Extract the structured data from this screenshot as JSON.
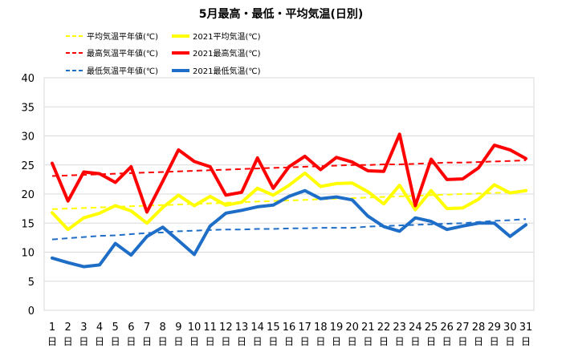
{
  "chart_data": {
    "type": "line",
    "title": "5月最高・最低・平均気温(日別)",
    "xlabel": "",
    "ylabel": "",
    "ylim": [
      0,
      40
    ],
    "yticks": [
      0,
      5,
      10,
      15,
      20,
      25,
      30,
      35,
      40
    ],
    "grid": true,
    "legend_position": "top-left",
    "day_suffix": "日",
    "categories": [
      "1",
      "2",
      "3",
      "4",
      "5",
      "6",
      "7",
      "8",
      "9",
      "10",
      "11",
      "12",
      "13",
      "14",
      "15",
      "16",
      "17",
      "18",
      "19",
      "20",
      "21",
      "22",
      "23",
      "24",
      "25",
      "26",
      "27",
      "28",
      "29",
      "30",
      "31"
    ],
    "series": [
      {
        "name": "平均気温平年値(℃)",
        "color": "#ffff00",
        "dashed": true,
        "values": [
          17.4,
          17.5,
          17.6,
          17.7,
          17.8,
          17.9,
          18.0,
          18.1,
          18.2,
          18.3,
          18.4,
          18.5,
          18.6,
          18.7,
          18.8,
          18.9,
          19.0,
          19.1,
          19.2,
          19.3,
          19.4,
          19.5,
          19.6,
          19.7,
          19.8,
          19.9,
          20.0,
          20.1,
          20.2,
          20.3,
          20.4
        ]
      },
      {
        "name": "2021平均気温(℃)",
        "color": "#ffff00",
        "dashed": false,
        "values": [
          16.8,
          13.9,
          15.9,
          16.7,
          18.0,
          17.1,
          15.0,
          17.7,
          19.8,
          18.0,
          19.6,
          18.1,
          18.6,
          21.0,
          19.8,
          21.5,
          23.6,
          21.3,
          21.8,
          21.9,
          20.4,
          18.3,
          21.5,
          17.3,
          20.6,
          17.5,
          17.6,
          19.1,
          21.6,
          20.2,
          20.6
        ]
      },
      {
        "name": "最高気温平年値(℃)",
        "color": "#ff0000",
        "dashed": true,
        "values": [
          23.1,
          23.2,
          23.3,
          23.4,
          23.5,
          23.6,
          23.7,
          23.8,
          23.9,
          24.0,
          24.1,
          24.2,
          24.3,
          24.4,
          24.5,
          24.6,
          24.7,
          24.8,
          24.9,
          25.0,
          25.0,
          25.1,
          25.1,
          25.2,
          25.3,
          25.4,
          25.4,
          25.5,
          25.6,
          25.7,
          25.8
        ]
      },
      {
        "name": "2021最高気温(℃)",
        "color": "#ff0000",
        "dashed": false,
        "values": [
          25.3,
          18.8,
          23.8,
          23.5,
          22.0,
          24.7,
          16.9,
          22.2,
          27.6,
          25.6,
          24.7,
          19.8,
          20.3,
          26.2,
          21.0,
          24.7,
          26.5,
          24.2,
          26.3,
          25.5,
          24.0,
          23.9,
          30.3,
          18.0,
          26.0,
          22.5,
          22.6,
          24.5,
          28.4,
          27.6,
          26.1
        ]
      },
      {
        "name": "最低気温平年値(℃)",
        "color": "#1e6ec8",
        "dashed": true,
        "values": [
          12.2,
          12.4,
          12.6,
          12.8,
          12.9,
          13.1,
          13.3,
          13.4,
          13.6,
          13.7,
          13.8,
          13.9,
          13.9,
          14.0,
          14.0,
          14.1,
          14.1,
          14.2,
          14.2,
          14.2,
          14.4,
          14.5,
          14.6,
          14.7,
          14.8,
          14.9,
          15.0,
          15.2,
          15.4,
          15.5,
          15.7
        ]
      },
      {
        "name": "2021最低気温(℃)",
        "color": "#1e6ec8",
        "dashed": false,
        "values": [
          9.0,
          8.2,
          7.5,
          7.8,
          11.5,
          9.5,
          12.7,
          14.3,
          12.0,
          9.6,
          14.5,
          16.7,
          17.2,
          17.8,
          18.1,
          19.6,
          20.6,
          19.2,
          19.5,
          19.0,
          16.2,
          14.4,
          13.6,
          15.9,
          15.3,
          13.9,
          14.5,
          15.0,
          15.0,
          12.7,
          14.7
        ]
      }
    ]
  }
}
